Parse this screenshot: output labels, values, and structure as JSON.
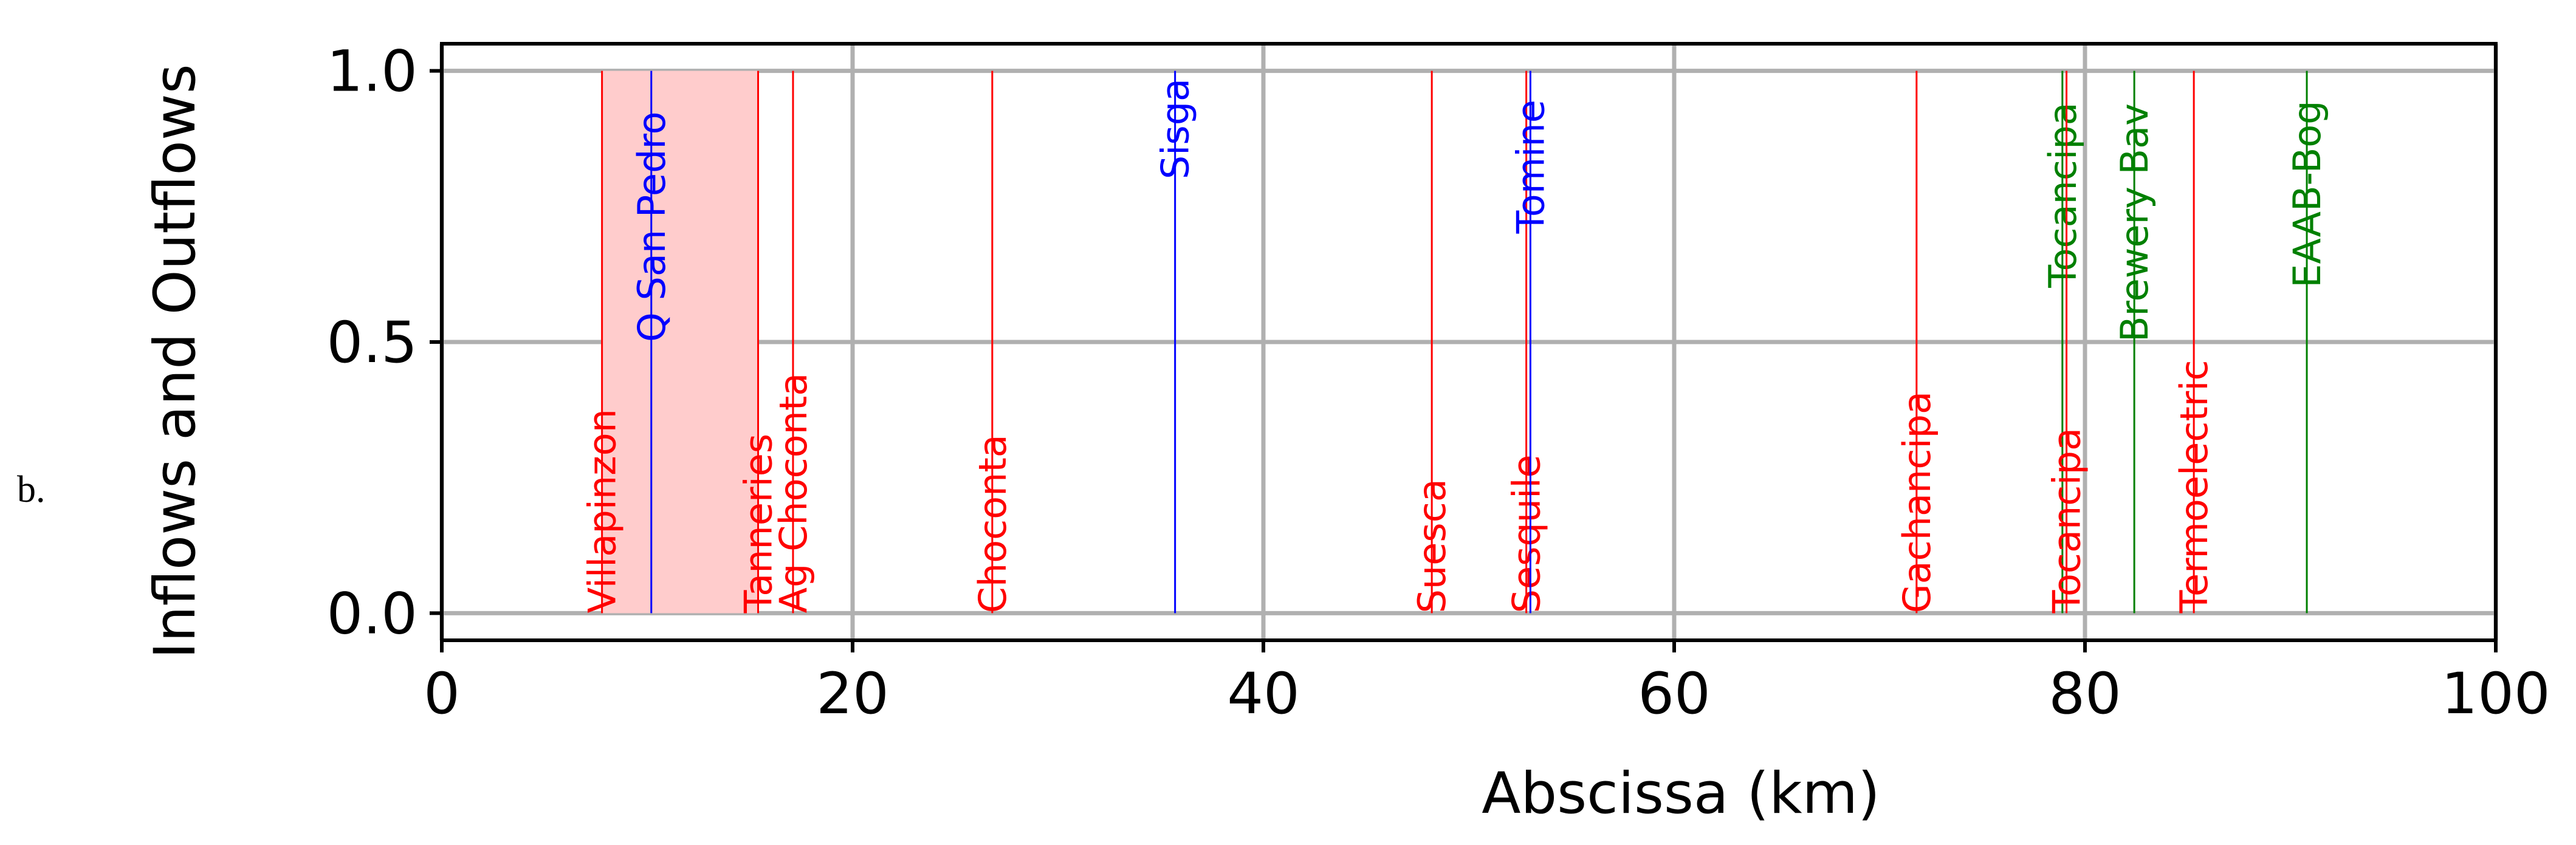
{
  "panel_label": "b.",
  "chart_data": {
    "type": "event-lines",
    "title": "",
    "xlabel": "Abscissa (km)",
    "ylabel": "Inflows and Outflows",
    "xlim": [
      0,
      100
    ],
    "ylim": [
      -0.05,
      1.05
    ],
    "xticks": [
      0,
      20,
      40,
      60,
      80,
      100
    ],
    "xtick_labels": [
      "0",
      "20",
      "40",
      "60",
      "80",
      "100"
    ],
    "yticks": [
      0.0,
      0.5,
      1.0
    ],
    "ytick_labels": [
      "0.0",
      "0.5",
      "1.0"
    ],
    "grid": true,
    "shaded_regions": [
      {
        "x_start": 7.8,
        "x_end": 15.4,
        "y_start": 0,
        "y_end": 1,
        "color": "#ffcccc"
      }
    ],
    "events": [
      {
        "label": "Villapinzon",
        "x": 7.8,
        "color": "#ff0000",
        "y_top": 1.0,
        "label_y": 0.0
      },
      {
        "label": "Q San Pedro",
        "x": 10.2,
        "color": "#0000ff",
        "y_top": 1.0,
        "label_y": 0.5
      },
      {
        "label": "Tanneries",
        "x": 15.4,
        "color": "#ff0000",
        "y_top": 1.0,
        "label_y": 0.0
      },
      {
        "label": "Ag Choconta",
        "x": 17.1,
        "color": "#ff0000",
        "y_top": 1.0,
        "label_y": 0.0
      },
      {
        "label": "Choconta",
        "x": 26.8,
        "color": "#ff0000",
        "y_top": 1.0,
        "label_y": 0.0
      },
      {
        "label": "Sisga",
        "x": 35.7,
        "color": "#0000ff",
        "y_top": 1.0,
        "label_y": 0.8
      },
      {
        "label": "Suesca",
        "x": 48.2,
        "color": "#ff0000",
        "y_top": 1.0,
        "label_y": 0.0
      },
      {
        "label": "Sesquile",
        "x": 52.8,
        "color": "#ff0000",
        "y_top": 1.0,
        "label_y": 0.0
      },
      {
        "label": "Tomine",
        "x": 53.0,
        "color": "#0000ff",
        "y_top": 1.0,
        "label_y": 0.7
      },
      {
        "label": "Gachancipa",
        "x": 71.8,
        "color": "#ff0000",
        "y_top": 1.0,
        "label_y": 0.0
      },
      {
        "label": "Tocancipa",
        "x": 78.9,
        "color": "#008000",
        "y_top": 1.0,
        "label_y": 0.6
      },
      {
        "label": "Tocancipa",
        "x": 79.1,
        "color": "#ff0000",
        "y_top": 1.0,
        "label_y": 0.0
      },
      {
        "label": "Brewery Bav",
        "x": 82.4,
        "color": "#008000",
        "y_top": 1.0,
        "label_y": 0.5
      },
      {
        "label": "Termoelectric",
        "x": 85.3,
        "color": "#ff0000",
        "y_top": 1.0,
        "label_y": 0.0
      },
      {
        "label": "EAAB-Bog",
        "x": 90.8,
        "color": "#008000",
        "y_top": 1.0,
        "label_y": 0.6
      }
    ]
  }
}
